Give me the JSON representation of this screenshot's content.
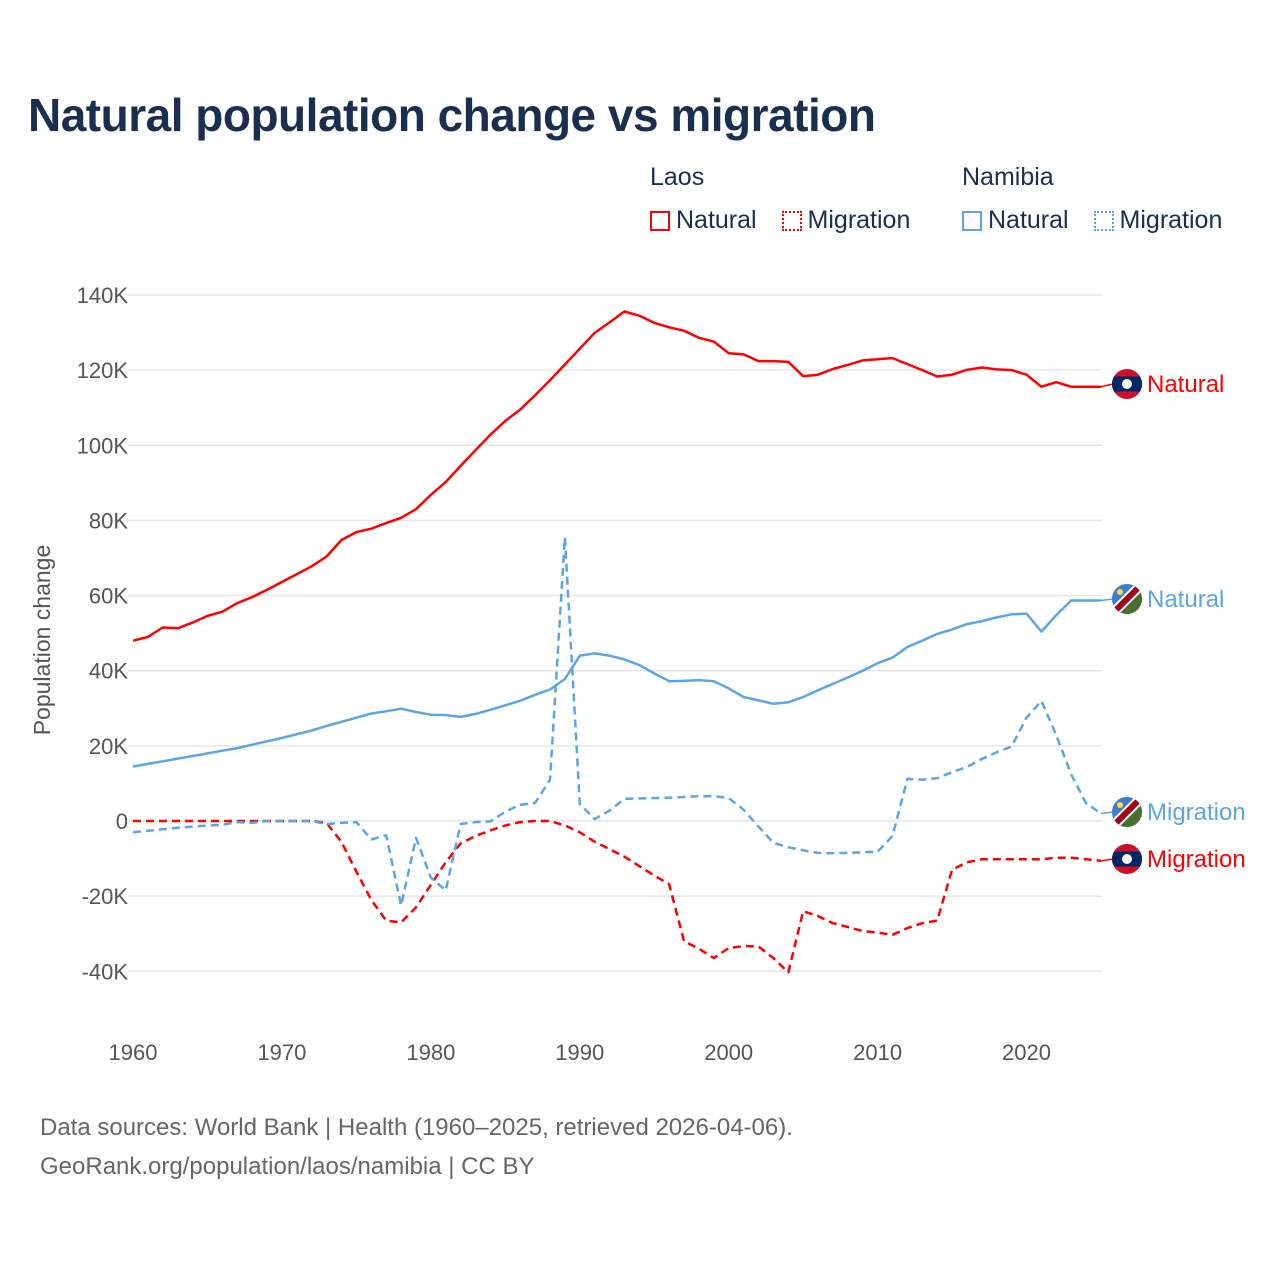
{
  "title": "Natural population change vs migration",
  "legend": [
    {
      "country": "Laos",
      "color": "#ff0000",
      "items": [
        "Natural",
        "Migration"
      ]
    },
    {
      "country": "Namibia",
      "color": "#5aa5e8",
      "items": [
        "Natural",
        "Migration"
      ]
    }
  ],
  "footer": {
    "line1": "Data sources: World Bank | Health (1960–2025, retrieved 2026-04-06).",
    "line2": "GeoRank.org/population/laos/namibia | CC BY"
  },
  "chart_data": {
    "type": "line",
    "title": "Natural population change vs migration",
    "xlabel": "",
    "ylabel": "Population change",
    "xlim": [
      1960,
      2025
    ],
    "ylim": [
      -40000,
      140000
    ],
    "x_ticks": [
      1960,
      1970,
      1980,
      1990,
      2000,
      2010,
      2020
    ],
    "y_ticks": [
      -40000,
      -20000,
      0,
      20000,
      40000,
      60000,
      80000,
      100000,
      120000,
      140000
    ],
    "y_tick_labels": [
      "-40K",
      "-20K",
      "0",
      "20K",
      "40K",
      "60K",
      "80K",
      "100K",
      "120K",
      "140K"
    ],
    "grid": true,
    "legend_position": "top-right",
    "x_start": 1960,
    "series": [
      {
        "name": "Laos Natural",
        "label": "Natural",
        "country": "Laos",
        "color": "#ff0000",
        "dashed": false,
        "values": [
          48000,
          49000,
          51500,
          51300,
          52800,
          54600,
          55700,
          58000,
          59600,
          61500,
          63600,
          65700,
          67800,
          70400,
          74800,
          76900,
          77800,
          79300,
          80700,
          83000,
          86800,
          90200,
          94500,
          98700,
          102800,
          106500,
          109500,
          113300,
          117300,
          121500,
          125700,
          129900,
          132700,
          135600,
          134500,
          132600,
          131400,
          130500,
          128600,
          127600,
          124500,
          124200,
          122400,
          122400,
          122200,
          118400,
          118800,
          120300,
          121400,
          122600,
          122900,
          123200,
          121600,
          120000,
          118300,
          118800,
          120100,
          120700,
          120200,
          120000,
          118800,
          115600,
          116800,
          115600,
          115600,
          115600
        ]
      },
      {
        "name": "Laos Migration",
        "label": "Migration",
        "country": "Laos",
        "color": "#ff0000",
        "dashed": true,
        "values": [
          0,
          0,
          0,
          0,
          0,
          0,
          0,
          0,
          0,
          0,
          0,
          0,
          0,
          -500,
          -5600,
          -13500,
          -21000,
          -26500,
          -27000,
          -23000,
          -17000,
          -11000,
          -6000,
          -4000,
          -2500,
          -1200,
          -300,
          0,
          0,
          -1200,
          -3000,
          -5500,
          -7500,
          -9500,
          -12000,
          -14500,
          -16800,
          -32000,
          -34000,
          -36500,
          -33800,
          -33300,
          -33400,
          -36500,
          -40300,
          -24000,
          -25300,
          -27200,
          -28200,
          -29300,
          -29700,
          -30300,
          -28500,
          -27200,
          -26500,
          -13000,
          -11000,
          -10200,
          -10200,
          -10200,
          -10200,
          -10200,
          -9800,
          -9800,
          -10200,
          -10600
        ]
      },
      {
        "name": "Namibia Natural",
        "label": "Natural",
        "country": "Namibia",
        "color": "#5aa5e8",
        "dashed": false,
        "values": [
          14500,
          15200,
          15900,
          16600,
          17300,
          18000,
          18700,
          19400,
          20300,
          21200,
          22100,
          23100,
          24100,
          25300,
          26400,
          27500,
          28600,
          29200,
          29900,
          29000,
          28300,
          28200,
          27700,
          28500,
          29600,
          30800,
          32000,
          33600,
          35000,
          37800,
          44000,
          44600,
          44000,
          43000,
          41500,
          39300,
          37200,
          37300,
          37500,
          37200,
          35300,
          33000,
          32100,
          31200,
          31600,
          33000,
          34800,
          36500,
          38200,
          40000,
          42000,
          43500,
          46300,
          48000,
          49800,
          51000,
          52400,
          53200,
          54200,
          55000,
          55200,
          50400,
          54800,
          58700,
          58700,
          58700
        ]
      },
      {
        "name": "Namibia Migration",
        "label": "Migration",
        "country": "Namibia",
        "color": "#5aa5e8",
        "dashed": true,
        "values": [
          -3000,
          -2600,
          -2200,
          -1800,
          -1500,
          -1200,
          -1000,
          -300,
          -500,
          0,
          0,
          0,
          0,
          -800,
          -500,
          -300,
          -4900,
          -3800,
          -22500,
          -4500,
          -15000,
          -18500,
          -800,
          -300,
          -100,
          2500,
          4300,
          4800,
          11000,
          75500,
          4500,
          500,
          2800,
          5900,
          6000,
          6100,
          6200,
          6400,
          6600,
          6600,
          6100,
          3000,
          -1500,
          -5800,
          -7000,
          -7800,
          -8500,
          -8600,
          -8500,
          -8300,
          -8200,
          -4000,
          11200,
          11000,
          11400,
          13000,
          14400,
          16500,
          18300,
          19800,
          27500,
          32000,
          22800,
          12400,
          4700,
          2000
        ]
      }
    ]
  }
}
